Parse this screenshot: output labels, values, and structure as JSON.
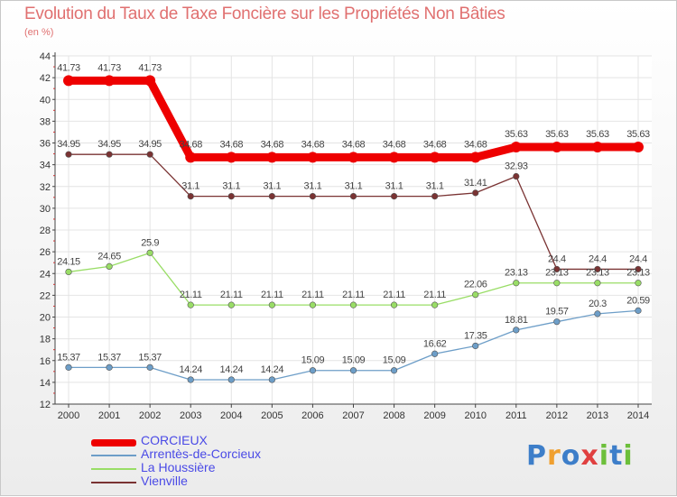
{
  "chart_data": {
    "type": "line",
    "title": "Evolution du Taux de Taxe Foncière sur les Propriétés Non Bâties",
    "ylabel": "(en %)",
    "xlabel": "",
    "x": [
      "2000",
      "2001",
      "2002",
      "2003",
      "2004",
      "2005",
      "2006",
      "2007",
      "2008",
      "2009",
      "2010",
      "2011",
      "2012",
      "2013",
      "2014"
    ],
    "ylim": [
      12,
      44
    ],
    "yticks": [
      "12",
      "14",
      "16",
      "18",
      "20",
      "22",
      "24",
      "26",
      "28",
      "30",
      "32",
      "34",
      "36",
      "38",
      "40",
      "42",
      "44"
    ],
    "grid": true,
    "series": [
      {
        "name": "CORCIEUX",
        "color": "#ee0000",
        "values": [
          41.73,
          41.73,
          41.73,
          34.68,
          34.68,
          34.68,
          34.68,
          34.68,
          34.68,
          34.68,
          34.68,
          35.63,
          35.63,
          35.63,
          35.63
        ],
        "labels": [
          "41.73",
          "41.73",
          "41.73",
          "34.68",
          "34.68",
          "34.68",
          "34.68",
          "34.68",
          "34.68",
          "34.68",
          "34.68",
          "35.63",
          "35.63",
          "35.63",
          "35.63"
        ]
      },
      {
        "name": "Arrentès-de-Corcieux",
        "color": "#6d9ec8",
        "values": [
          15.37,
          15.37,
          15.37,
          14.24,
          14.24,
          14.24,
          15.09,
          15.09,
          15.09,
          16.62,
          17.35,
          18.81,
          19.57,
          20.3,
          20.59
        ],
        "labels": [
          "15.37",
          "15.37",
          "15.37",
          "14.24",
          "14.24",
          "14.24",
          "15.09",
          "15.09",
          "15.09",
          "16.62",
          "17.35",
          "18.81",
          "19.57",
          "20.3",
          "20.59"
        ]
      },
      {
        "name": "La Houssière",
        "color": "#99dd66",
        "values": [
          24.15,
          24.65,
          25.9,
          21.11,
          21.11,
          21.11,
          21.11,
          21.11,
          21.11,
          21.11,
          22.06,
          23.13,
          23.13,
          23.13,
          23.13
        ],
        "labels": [
          "24.15",
          "24.65",
          "25.9",
          "21.11",
          "21.11",
          "21.11",
          "21.11",
          "21.11",
          "21.11",
          "21.11",
          "22.06",
          "23.13",
          "23.13",
          "23.13",
          "23.13"
        ]
      },
      {
        "name": "Vienville",
        "color": "#7a3333",
        "values": [
          34.95,
          34.95,
          34.95,
          31.1,
          31.1,
          31.1,
          31.1,
          31.1,
          31.1,
          31.1,
          31.41,
          32.93,
          24.4,
          24.4,
          24.4
        ],
        "labels": [
          "34.95",
          "34.95",
          "34.95",
          "31.1",
          "31.1",
          "31.1",
          "31.1",
          "31.1",
          "31.1",
          "31.1",
          "31.41",
          "32.93",
          "24.4",
          "24.4",
          "24.4"
        ]
      }
    ]
  },
  "logo": {
    "text": "Proxiti",
    "letters": [
      "P",
      "r",
      "o",
      "x",
      "i",
      "t",
      "i"
    ],
    "colors": [
      "#3d7ec9",
      "#f0a030",
      "#3d7ec9",
      "#e04040",
      "#6cbf3a",
      "#3d7ec9",
      "#6cbf3a"
    ]
  }
}
